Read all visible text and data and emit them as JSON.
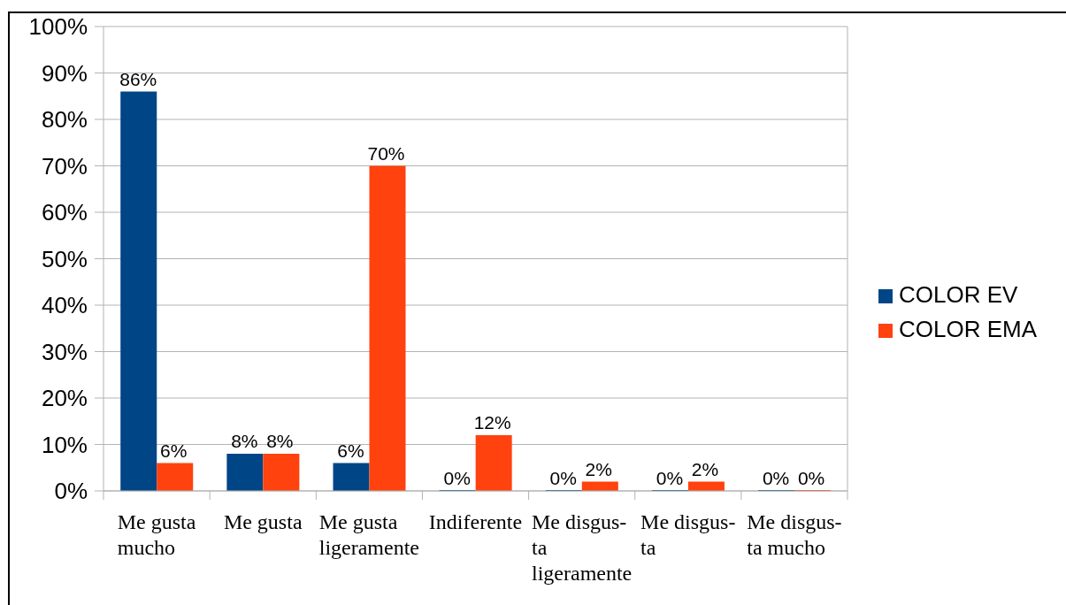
{
  "chart_data": {
    "type": "bar",
    "categories": [
      "Me gusta mucho",
      "Me gusta",
      "Me gusta ligeramente",
      "Indiferente",
      "Me disgus-ta ligeramente",
      "Me disgus-ta",
      "Me disgus-ta mucho"
    ],
    "series": [
      {
        "name": "COLOR EV",
        "color": "#004586",
        "values": [
          86,
          8,
          6,
          0,
          0,
          0,
          0
        ],
        "value_labels": [
          "86%",
          "8%",
          "6%",
          "0%",
          "0%",
          "0%",
          "0%"
        ]
      },
      {
        "name": "COLOR EMA",
        "color": "#ff420e",
        "values": [
          6,
          8,
          70,
          12,
          2,
          2,
          0
        ],
        "value_labels": [
          "6%",
          "8%",
          "70%",
          "12%",
          "2%",
          "2%",
          "0%"
        ]
      }
    ],
    "ylim": [
      0,
      100
    ],
    "yticks": [
      {
        "value": 0,
        "label": "0%"
      },
      {
        "value": 10,
        "label": "10%"
      },
      {
        "value": 20,
        "label": "20%"
      },
      {
        "value": 30,
        "label": "30%"
      },
      {
        "value": 40,
        "label": "40%"
      },
      {
        "value": 50,
        "label": "50%"
      },
      {
        "value": 60,
        "label": "60%"
      },
      {
        "value": 70,
        "label": "70%"
      },
      {
        "value": 80,
        "label": "80%"
      },
      {
        "value": 90,
        "label": "90%"
      },
      {
        "value": 100,
        "label": "100%"
      }
    ],
    "grid": "y",
    "legend": "right"
  }
}
